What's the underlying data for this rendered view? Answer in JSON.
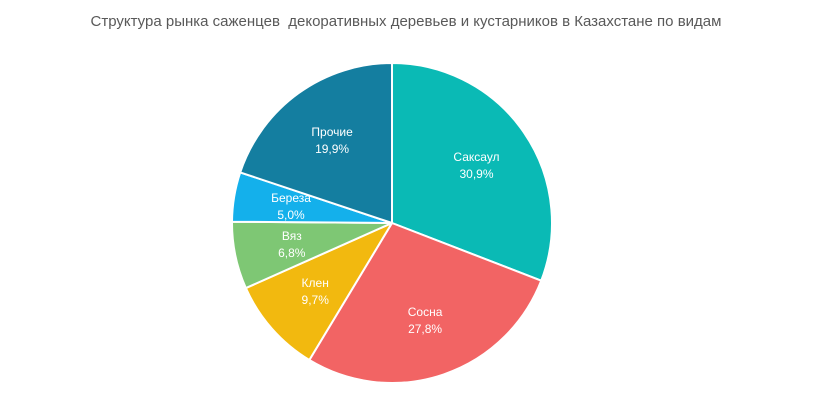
{
  "chart_data": {
    "type": "pie",
    "title": "Структура рынка саженцев  декоративных деревьев и кустарников в Казахстане по видам",
    "categories": [
      "Саксаул",
      "Сосна",
      "Клен",
      "Вяз",
      "Береза",
      "Прочие"
    ],
    "values": [
      30.9,
      27.8,
      9.7,
      6.8,
      5.0,
      19.9
    ],
    "value_labels": [
      "30,9%",
      "27,8%",
      "9,7%",
      "6,8%",
      "5,0%",
      "19,9%"
    ],
    "colors": [
      "#0ABAB5",
      "#F26464",
      "#F2B90F",
      "#7EC774",
      "#14B0EB",
      "#147EA0"
    ],
    "start_angle": "12 o'clock",
    "direction": "clockwise",
    "data_labels": "inside",
    "legend": "none"
  }
}
